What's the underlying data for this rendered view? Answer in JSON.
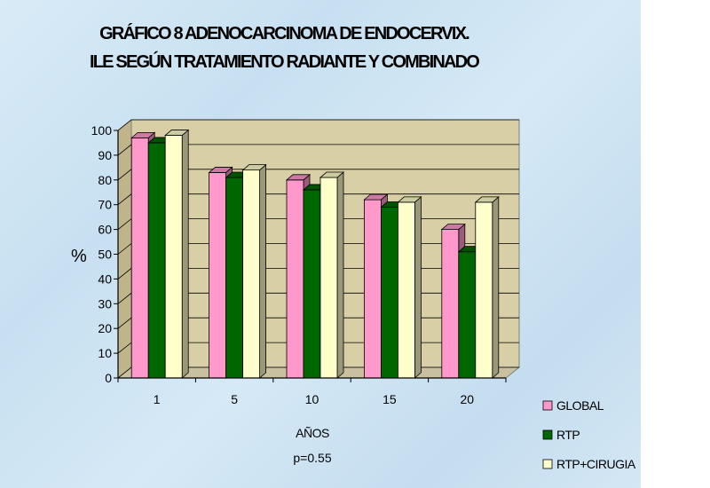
{
  "title_lines": [
    "GRÁFICO 8   ADENOCARCINOMA DE ENDOCERVIX.",
    "ILE SEGÚN TRATAMIENTO RADIANTE  Y COMBINADO"
  ],
  "chart_data": {
    "type": "bar",
    "categories": [
      "1",
      "5",
      "10",
      "15",
      "20"
    ],
    "series": [
      {
        "name": "GLOBAL",
        "values": [
          97,
          83,
          80,
          72,
          60
        ],
        "color": "#ff99cc"
      },
      {
        "name": "RTP",
        "values": [
          95,
          81,
          76,
          69,
          51
        ],
        "color": "#006600"
      },
      {
        "name": "RTP+CIRUGIA",
        "values": [
          98,
          84,
          81,
          71,
          71
        ],
        "color": "#ffffcc"
      }
    ],
    "ylabel": "%",
    "xlabel": "AÑOS",
    "ylim": [
      0,
      100
    ],
    "yticks": [
      0,
      10,
      20,
      30,
      40,
      50,
      60,
      70,
      80,
      90,
      100
    ],
    "annotation": "p=0.55",
    "grid": true,
    "legend_position": "bottom-right",
    "is_3d": true
  }
}
